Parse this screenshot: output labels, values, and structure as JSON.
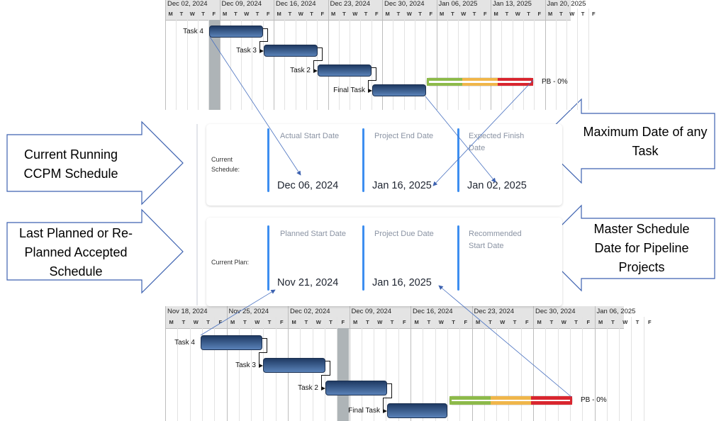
{
  "top_gantt": {
    "weeks": [
      "Dec 02, 2024",
      "Dec 09, 2024",
      "Dec 16, 2024",
      "Dec 23, 2024",
      "Dec 30, 2024",
      "Jan 06, 2025",
      "Jan 13, 2025",
      "Jan 20, 2025"
    ],
    "day_letters": [
      "M",
      "T",
      "W",
      "T",
      "F"
    ],
    "tasks": [
      {
        "name": "Task 4"
      },
      {
        "name": "Task 3"
      },
      {
        "name": "Task 2"
      },
      {
        "name": "Final Task"
      }
    ],
    "buffer_label": "PB - 0%"
  },
  "bottom_gantt": {
    "weeks": [
      "Nov 18, 2024",
      "Nov 25, 2024",
      "Dec 02, 2024",
      "Dec 09, 2024",
      "Dec 16, 2024",
      "Dec 23, 2024",
      "Dec 30, 2024",
      "Jan 06, 2025"
    ],
    "day_letters": [
      "M",
      "T",
      "W",
      "T",
      "F"
    ],
    "tasks": [
      {
        "name": "Task 4"
      },
      {
        "name": "Task 3"
      },
      {
        "name": "Task 2"
      },
      {
        "name": "Final Task"
      }
    ],
    "buffer_label": "PB - 0%"
  },
  "buffer_colors": [
    "#8dba4a",
    "#f0b64a",
    "#d9262f"
  ],
  "current_schedule": {
    "label": "Current Schedule:",
    "fields": [
      {
        "label": "Actual Start Date",
        "value": "Dec 06, 2024"
      },
      {
        "label": "Project End Date",
        "value": "Jan 16, 2025"
      },
      {
        "label": "Expected Finish Date",
        "value": "Jan 02, 2025"
      }
    ]
  },
  "current_plan": {
    "label": "Current Plan:",
    "fields": [
      {
        "label": "Planned Start Date",
        "value": "Nov 21, 2024"
      },
      {
        "label": "Project Due Date",
        "value": "Jan 16, 2025"
      },
      {
        "label": "Recommended Start Date",
        "value": ""
      }
    ]
  },
  "callouts": {
    "left_top": "Current Running CCPM Schedule",
    "left_bottom": "Last Planned or Re-Planned Accepted Schedule",
    "right_top": "Maximum Date of any Task",
    "right_bottom": "Master Schedule Date for Pipeline Projects"
  }
}
